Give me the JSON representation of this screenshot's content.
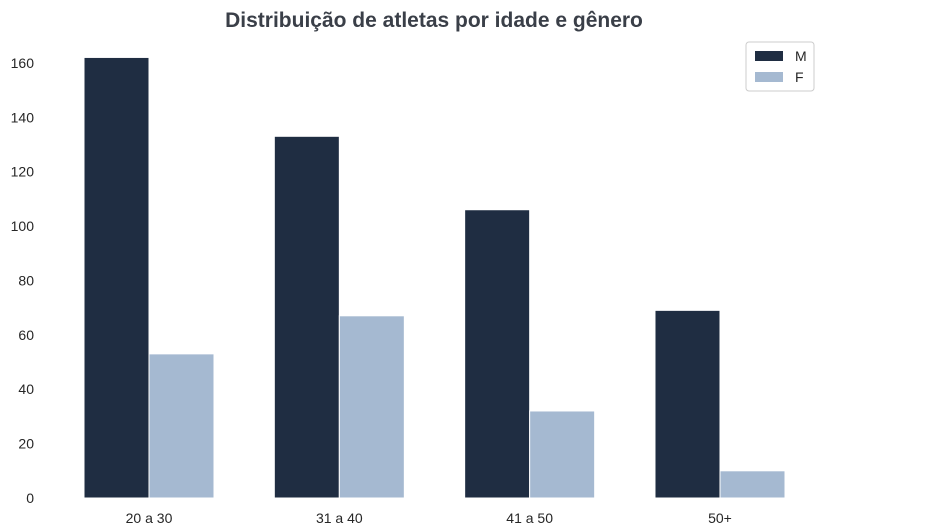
{
  "chart_data": {
    "type": "bar",
    "title": "Distribuição de atletas por idade e gênero",
    "xlabel": "",
    "ylabel": "",
    "categories": [
      "20 a 30",
      "31 a 40",
      "41 a 50",
      "50+"
    ],
    "series": [
      {
        "name": "M",
        "values": [
          162,
          133,
          106,
          69
        ],
        "color": "#1f2d42"
      },
      {
        "name": "F",
        "values": [
          53,
          67,
          32,
          10
        ],
        "color": "#a5b9d1"
      }
    ],
    "ylim": [
      0,
      168
    ],
    "yticks": [
      0,
      20,
      40,
      60,
      80,
      100,
      120,
      140,
      160
    ],
    "grid": false,
    "legend_position": "top-right"
  }
}
